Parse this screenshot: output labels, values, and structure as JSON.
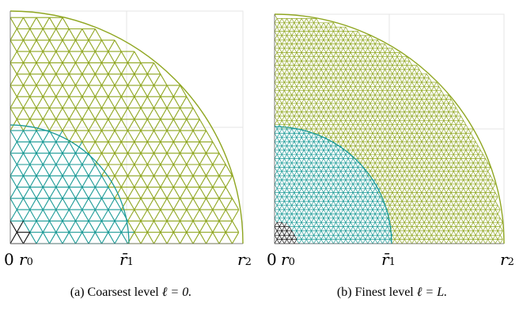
{
  "colors": {
    "outer_ring": "#8fa620",
    "middle_ring": "#1a9a96",
    "inner_core": "#111111",
    "grid": "#e6e6e6",
    "axis": "#666666"
  },
  "panels": [
    {
      "id": "a",
      "caption_prefix": "(a) Coarsest level",
      "caption_math": "ℓ = 0.",
      "ticks": {
        "zero": "0",
        "r0": "r",
        "r0_sub": "0",
        "r1": "r̄",
        "r1_sub": "1",
        "r2": "r",
        "r2_sub": "2"
      },
      "mesh_density": "coarse"
    },
    {
      "id": "b",
      "caption_prefix": "(b) Finest level",
      "caption_math": "ℓ = L.",
      "ticks": {
        "zero": "0",
        "r0": "r",
        "r0_sub": "0",
        "r1": "r̄",
        "r1_sub": "1",
        "r2": "r",
        "r2_sub": "2"
      },
      "mesh_density": "fine"
    }
  ]
}
